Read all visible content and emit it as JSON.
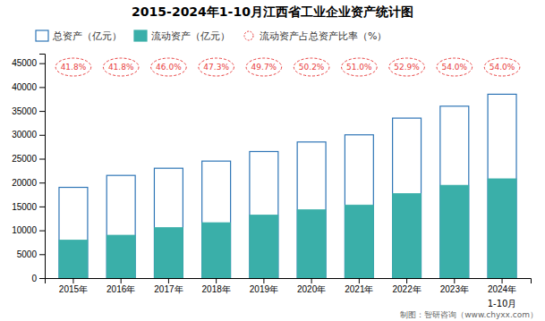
{
  "chart_data": {
    "type": "bar",
    "title": "2015-2024年1-10月江西省工业企业资产统计图",
    "categories": [
      "2015年",
      "2016年",
      "2017年",
      "2018年",
      "2019年",
      "2020年",
      "2021年",
      "2022年",
      "2023年",
      "2024年"
    ],
    "series": [
      {
        "name": "总资产（亿元）",
        "type": "bar",
        "color": "#2E75B6",
        "values": [
          19000,
          21500,
          23000,
          24500,
          26500,
          28500,
          30000,
          33500,
          36000,
          38500
        ]
      },
      {
        "name": "流动资产（亿元）",
        "type": "bar",
        "color": "#3AAFA9",
        "values": [
          7950,
          8980,
          10580,
          11600,
          13200,
          14300,
          15300,
          17700,
          19440,
          20790
        ]
      },
      {
        "name": "流动资产占总资产比率（%）",
        "type": "label",
        "color": "#E84040",
        "marker": "circle",
        "line_style": "dashed",
        "values": [
          41.8,
          41.8,
          46.0,
          47.3,
          49.7,
          50.2,
          51.0,
          52.9,
          54.0,
          54.0
        ],
        "value_labels": [
          "41.8%",
          "41.8%",
          "46.0%",
          "47.3%",
          "49.7%",
          "50.2%",
          "51.0%",
          "52.9%",
          "54.0%",
          "54.0%"
        ]
      }
    ],
    "ylim": [
      0,
      47000
    ],
    "yticks": [
      0,
      5000,
      10000,
      15000,
      20000,
      25000,
      30000,
      35000,
      40000,
      45000
    ],
    "grid": false,
    "legend": "upper left",
    "annotations": [
      {
        "text": "1-10月",
        "x": "2024年"
      }
    ],
    "footer": "制图：智研咨询（www.chyxx.com）"
  }
}
